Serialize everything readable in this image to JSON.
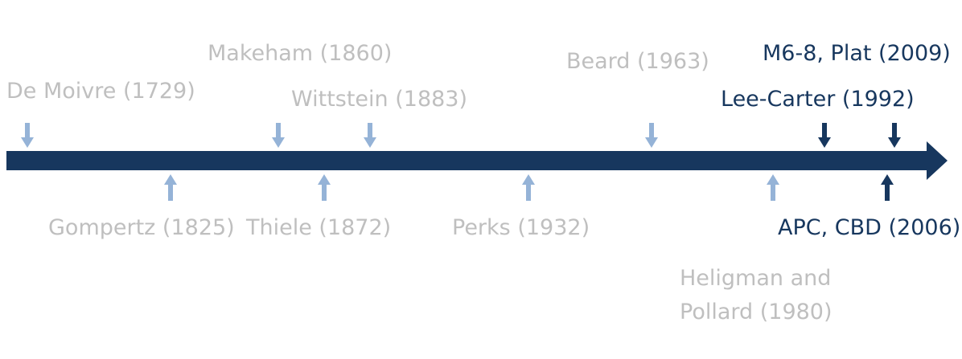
{
  "colors": {
    "axis": "#17375e",
    "arrow_light": "#95b3d7",
    "arrow_dark": "#17375e",
    "text_light": "#bfbfbf",
    "text_dark": "#17375e"
  },
  "events": [
    {
      "id": "de-moivre",
      "label": "De Moivre (1729)",
      "side": "above",
      "highlight": false
    },
    {
      "id": "makeham",
      "label": "Makeham (1860)",
      "side": "above",
      "highlight": false
    },
    {
      "id": "wittstein",
      "label": "Wittstein (1883)",
      "side": "above",
      "highlight": false
    },
    {
      "id": "beard",
      "label": "Beard (1963)",
      "side": "above",
      "highlight": false
    },
    {
      "id": "lee-carter",
      "label": "Lee-Carter (1992)",
      "side": "above",
      "highlight": true
    },
    {
      "id": "m6-8-plat",
      "label": "M6-8, Plat (2009)",
      "side": "above",
      "highlight": true
    },
    {
      "id": "gompertz",
      "label": "Gompertz (1825)",
      "side": "below",
      "highlight": false
    },
    {
      "id": "thiele",
      "label": "Thiele (1872)",
      "side": "below",
      "highlight": false
    },
    {
      "id": "perks",
      "label": "Perks (1932)",
      "side": "below",
      "highlight": false
    },
    {
      "id": "heligman-pollard",
      "label": "Heligman and Pollard (1980)",
      "side": "below",
      "highlight": false
    },
    {
      "id": "apc-cbd",
      "label": "APC, CBD (2006)",
      "side": "below",
      "highlight": true
    }
  ]
}
